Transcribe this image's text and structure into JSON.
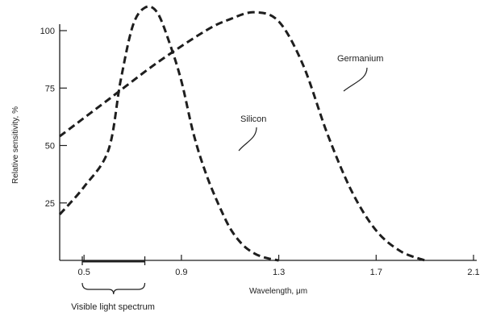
{
  "chart_data": {
    "type": "line",
    "xlabel": "Wavelength, μm",
    "ylabel": "Relative sensitivity, %",
    "xlim": [
      0.4,
      2.1
    ],
    "ylim": [
      0,
      110
    ],
    "x_ticks": [
      0.5,
      0.9,
      1.3,
      1.7,
      2.1
    ],
    "x_tick_labels": [
      "0.5",
      "0.9",
      "1.3",
      "1.7",
      "2.1"
    ],
    "y_ticks": [
      25,
      50,
      75,
      100
    ],
    "y_tick_labels": [
      "25",
      "50",
      "75",
      "100"
    ],
    "grid": false,
    "line_style": "dashed",
    "series": [
      {
        "name": "Silicon",
        "x": [
          0.4,
          0.5,
          0.6,
          0.65,
          0.7,
          0.75,
          0.8,
          0.85,
          0.9,
          0.95,
          1.0,
          1.05,
          1.1,
          1.15,
          1.2,
          1.25,
          1.3
        ],
        "y": [
          20,
          32,
          48,
          78,
          102,
          110,
          108,
          95,
          78,
          55,
          38,
          25,
          14,
          7,
          3,
          1,
          0
        ]
      },
      {
        "name": "Germanium",
        "x": [
          0.4,
          0.6,
          0.8,
          1.0,
          1.1,
          1.2,
          1.3,
          1.4,
          1.5,
          1.6,
          1.7,
          1.8,
          1.9
        ],
        "y": [
          54,
          70,
          86,
          100,
          105,
          108,
          104,
          85,
          55,
          30,
          13,
          4,
          0
        ]
      }
    ],
    "annotations": {
      "silicon_label": "Silicon",
      "germanium_label": "Germanium",
      "visible_range_label": "Visible light spectrum",
      "visible_range": [
        0.4,
        0.7
      ]
    },
    "colors": {
      "ink": "#1e1e1e",
      "background": "#ffffff"
    }
  }
}
